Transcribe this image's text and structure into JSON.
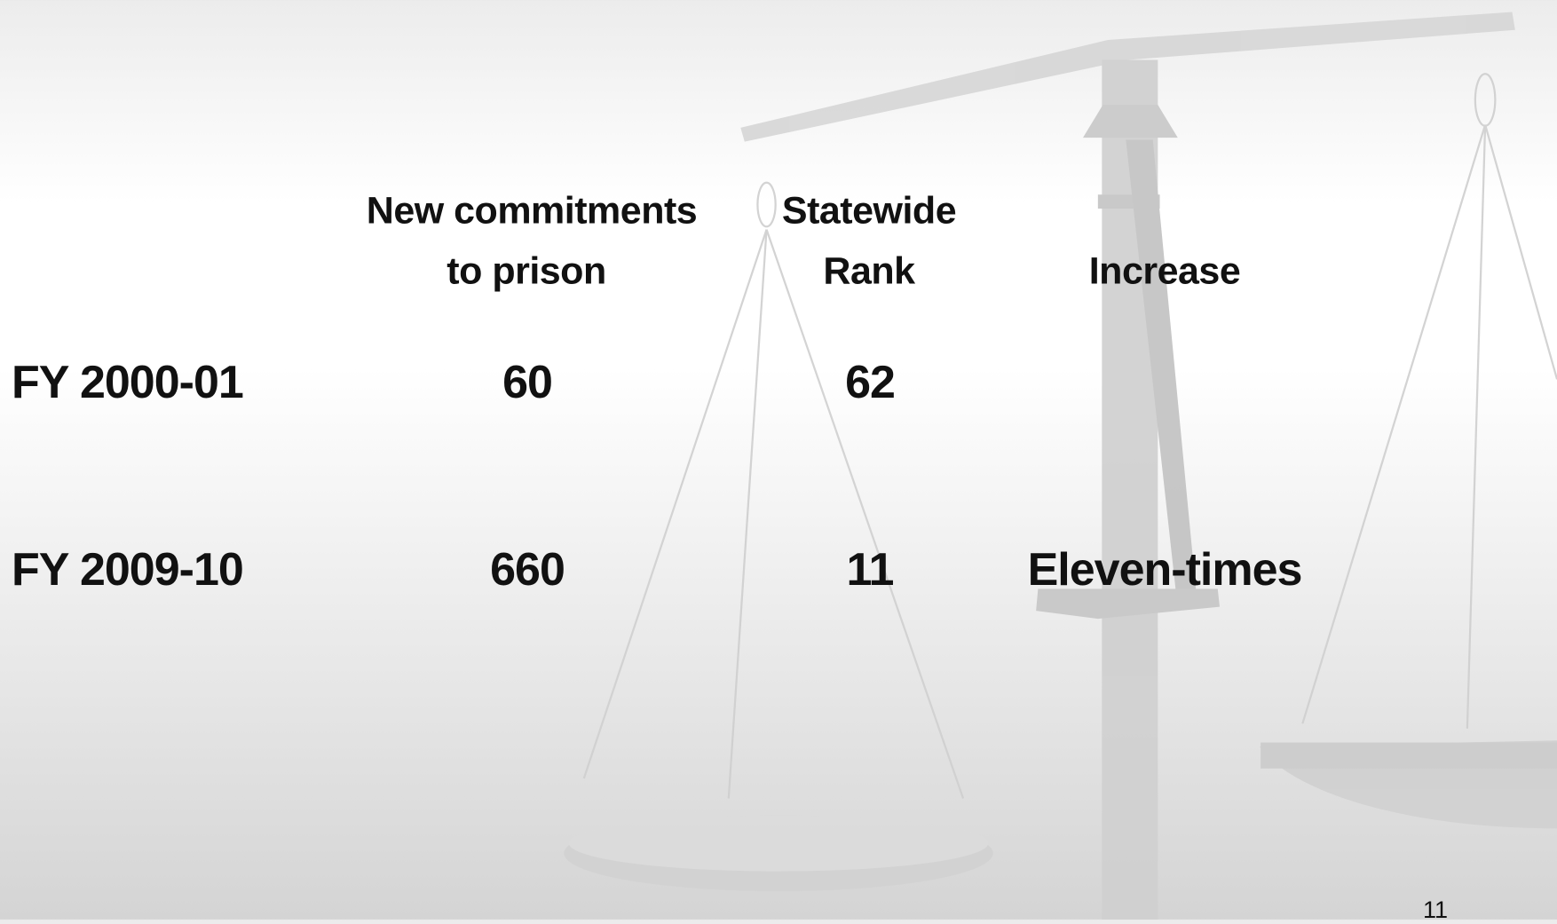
{
  "table": {
    "headers": [
      [
        "New commitments",
        "to prison"
      ],
      [
        "Statewide",
        "Rank"
      ],
      [
        "Increase"
      ]
    ],
    "rows": [
      [
        "FY 2000-01",
        60,
        62
      ],
      [
        "FY 2009-10",
        660,
        11,
        "Eleven-times"
      ]
    ]
  },
  "page_number": 11
}
